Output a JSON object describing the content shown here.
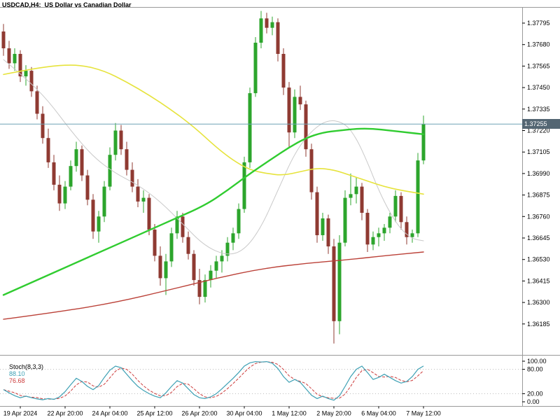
{
  "header": {
    "symbol_label": "USDCAD,H4:  US Dollar vs Canadian Dollar"
  },
  "price_scale": {
    "current_price": "1.37255"
  },
  "indicator_panel": {
    "name": "Stoch(8,3,3)",
    "main_value": "88.10",
    "signal_value": "76.68",
    "level_labels": [
      "100.00",
      "80.00",
      "20.00",
      "0.00"
    ]
  },
  "colors": {
    "background": "#ffffff",
    "bull_candle": "#2ca52c",
    "bear_candle": "#8f3a32",
    "frame": "#9a9a9a",
    "axis_text": "#000000",
    "price_line": "#6fa3b5",
    "price_tag_bg": "#546673",
    "price_tag_text": "#ffffff",
    "level_dotted": "#bbbbbb"
  },
  "chart_data": {
    "type": "candlestick",
    "symbol": "USDCAD",
    "timeframe": "H4",
    "title": "US Dollar vs Canadian Dollar",
    "current_price": 1.37255,
    "y_axis": {
      "tick_step": 0.00115,
      "labels": [
        "1.37795",
        "1.37680",
        "1.37565",
        "1.37450",
        "1.37335",
        "1.37220",
        "1.37105",
        "1.36990",
        "1.36875",
        "1.36760",
        "1.36645",
        "1.36530",
        "1.36415",
        "1.36300",
        "1.36185"
      ],
      "ylim": [
        1.3608,
        1.3788
      ]
    },
    "x_axis": {
      "labels": [
        "19 Apr 2024",
        "22 Apr 20:00",
        "24 Apr 04:00",
        "25 Apr 12:00",
        "26 Apr 20:00",
        "30 Apr 04:00",
        "1 May 12:00",
        "2 May 20:00",
        "6 May 04:00",
        "7 May 12:00"
      ],
      "label_start_index": 3,
      "label_step": 8
    },
    "values_format": "[open,high,low,close]",
    "candles": [
      [
        1.3775,
        1.3779,
        1.3762,
        1.3766
      ],
      [
        1.3766,
        1.377,
        1.3755,
        1.3758
      ],
      [
        1.3758,
        1.3766,
        1.3754,
        1.3763
      ],
      [
        1.3763,
        1.3765,
        1.3748,
        1.3751
      ],
      [
        1.3751,
        1.3757,
        1.3746,
        1.3754
      ],
      [
        1.3754,
        1.3756,
        1.374,
        1.3743
      ],
      [
        1.3743,
        1.3746,
        1.3728,
        1.3731
      ],
      [
        1.3731,
        1.3735,
        1.3715,
        1.3718
      ],
      [
        1.3718,
        1.3723,
        1.3702,
        1.3705
      ],
      [
        1.3705,
        1.3709,
        1.369,
        1.3693
      ],
      [
        1.3693,
        1.3698,
        1.3679,
        1.3683
      ],
      [
        1.3683,
        1.3695,
        1.368,
        1.3692
      ],
      [
        1.3692,
        1.3706,
        1.369,
        1.3703
      ],
      [
        1.3703,
        1.3716,
        1.37,
        1.3712
      ],
      [
        1.3712,
        1.3714,
        1.3695,
        1.3698
      ],
      [
        1.3698,
        1.3701,
        1.3682,
        1.3685
      ],
      [
        1.3685,
        1.3688,
        1.3664,
        1.3668
      ],
      [
        1.3668,
        1.3679,
        1.3662,
        1.3676
      ],
      [
        1.3676,
        1.3695,
        1.3673,
        1.3692
      ],
      [
        1.3692,
        1.3713,
        1.369,
        1.3709
      ],
      [
        1.3709,
        1.3726,
        1.3706,
        1.3722
      ],
      [
        1.3722,
        1.3725,
        1.3709,
        1.3712
      ],
      [
        1.3712,
        1.3716,
        1.3698,
        1.3701
      ],
      [
        1.3701,
        1.3705,
        1.3689,
        1.3692
      ],
      [
        1.3692,
        1.3696,
        1.3681,
        1.3684
      ],
      [
        1.3684,
        1.369,
        1.3678,
        1.3686
      ],
      [
        1.3686,
        1.3688,
        1.3666,
        1.3669
      ],
      [
        1.3669,
        1.3672,
        1.3652,
        1.3655
      ],
      [
        1.3655,
        1.366,
        1.3639,
        1.3643
      ],
      [
        1.3643,
        1.3656,
        1.3634,
        1.3652
      ],
      [
        1.3652,
        1.367,
        1.3649,
        1.3667
      ],
      [
        1.3667,
        1.3679,
        1.3664,
        1.3676
      ],
      [
        1.3676,
        1.3678,
        1.3662,
        1.3665
      ],
      [
        1.3665,
        1.3668,
        1.3653,
        1.3656
      ],
      [
        1.3656,
        1.3658,
        1.3639,
        1.3642
      ],
      [
        1.3642,
        1.3648,
        1.3629,
        1.3633
      ],
      [
        1.3633,
        1.3645,
        1.363,
        1.3642
      ],
      [
        1.3642,
        1.365,
        1.3638,
        1.3647
      ],
      [
        1.3647,
        1.3655,
        1.3643,
        1.3652
      ],
      [
        1.3652,
        1.3658,
        1.3646,
        1.3655
      ],
      [
        1.3655,
        1.3665,
        1.3652,
        1.3662
      ],
      [
        1.3662,
        1.367,
        1.3658,
        1.3667
      ],
      [
        1.3667,
        1.3683,
        1.3664,
        1.368
      ],
      [
        1.368,
        1.3708,
        1.3678,
        1.3705
      ],
      [
        1.3705,
        1.3745,
        1.3702,
        1.3742
      ],
      [
        1.3742,
        1.3772,
        1.374,
        1.3769
      ],
      [
        1.3769,
        1.3786,
        1.3766,
        1.3782
      ],
      [
        1.3782,
        1.3785,
        1.3774,
        1.3777
      ],
      [
        1.3777,
        1.3783,
        1.3773,
        1.378
      ],
      [
        1.378,
        1.3782,
        1.3759,
        1.3763
      ],
      [
        1.3763,
        1.3766,
        1.3741,
        1.3745
      ],
      [
        1.3745,
        1.3748,
        1.3713,
        1.3721
      ],
      [
        1.3721,
        1.3744,
        1.3718,
        1.374
      ],
      [
        1.374,
        1.3746,
        1.3733,
        1.3736
      ],
      [
        1.3736,
        1.3738,
        1.3708,
        1.3712
      ],
      [
        1.3712,
        1.3715,
        1.3685,
        1.3689
      ],
      [
        1.3689,
        1.3692,
        1.3662,
        1.3666
      ],
      [
        1.3666,
        1.3678,
        1.3663,
        1.3675
      ],
      [
        1.3675,
        1.3677,
        1.3656,
        1.366
      ],
      [
        1.366,
        1.3664,
        1.3608,
        1.362
      ],
      [
        1.362,
        1.3666,
        1.3613,
        1.3662
      ],
      [
        1.3662,
        1.369,
        1.366,
        1.3686
      ],
      [
        1.3686,
        1.3699,
        1.3682,
        1.3688
      ],
      [
        1.3688,
        1.3697,
        1.3683,
        1.3692
      ],
      [
        1.3692,
        1.3694,
        1.3674,
        1.3678
      ],
      [
        1.3678,
        1.368,
        1.3657,
        1.3661
      ],
      [
        1.3661,
        1.3668,
        1.3658,
        1.3665
      ],
      [
        1.3665,
        1.367,
        1.366,
        1.3667
      ],
      [
        1.3667,
        1.3672,
        1.3663,
        1.367
      ],
      [
        1.367,
        1.3678,
        1.3667,
        1.3676
      ],
      [
        1.3676,
        1.369,
        1.3673,
        1.3687
      ],
      [
        1.3687,
        1.3689,
        1.3669,
        1.3673
      ],
      [
        1.3673,
        1.3676,
        1.3661,
        1.3665
      ],
      [
        1.3665,
        1.3669,
        1.3662,
        1.3667
      ],
      [
        1.3667,
        1.371,
        1.3665,
        1.3706
      ],
      [
        1.3706,
        1.373,
        1.3704,
        1.37255
      ]
    ],
    "overlays": [
      {
        "name": "ma-gray-line",
        "color": "#c9c9c9",
        "width": 1,
        "points": [
          [
            0,
            1.376
          ],
          [
            4,
            1.375
          ],
          [
            8,
            1.3738
          ],
          [
            12,
            1.3722
          ],
          [
            16,
            1.3708
          ],
          [
            20,
            1.3699
          ],
          [
            24,
            1.3693
          ],
          [
            28,
            1.3684
          ],
          [
            32,
            1.3672
          ],
          [
            36,
            1.366
          ],
          [
            40,
            1.3655
          ],
          [
            43,
            1.3658
          ],
          [
            46,
            1.367
          ],
          [
            49,
            1.369
          ],
          [
            52,
            1.371
          ],
          [
            55,
            1.3722
          ],
          [
            58,
            1.3728
          ],
          [
            61,
            1.3726
          ],
          [
            63,
            1.3718
          ],
          [
            65,
            1.3705
          ],
          [
            67,
            1.369
          ],
          [
            69,
            1.3678
          ],
          [
            71,
            1.3669
          ],
          [
            73,
            1.3664
          ],
          [
            75,
            1.3663
          ]
        ]
      },
      {
        "name": "ma-red-line",
        "color": "#bb4138",
        "width": 1.4,
        "points": [
          [
            0,
            1.3621
          ],
          [
            10,
            1.3625
          ],
          [
            20,
            1.363
          ],
          [
            30,
            1.3637
          ],
          [
            38,
            1.3643
          ],
          [
            46,
            1.3648
          ],
          [
            54,
            1.3651
          ],
          [
            62,
            1.3653
          ],
          [
            68,
            1.3655
          ],
          [
            75,
            1.3657
          ]
        ]
      },
      {
        "name": "ma-yellow-line",
        "color": "#e6e33c",
        "width": 1.6,
        "points": [
          [
            0,
            1.3752
          ],
          [
            5,
            1.3755
          ],
          [
            10,
            1.3757
          ],
          [
            14,
            1.3757
          ],
          [
            18,
            1.3754
          ],
          [
            22,
            1.3748
          ],
          [
            26,
            1.3741
          ],
          [
            30,
            1.3733
          ],
          [
            34,
            1.3724
          ],
          [
            38,
            1.3713
          ],
          [
            41,
            1.3706
          ],
          [
            44,
            1.3701
          ],
          [
            47,
            1.3699
          ],
          [
            50,
            1.3698
          ],
          [
            53,
            1.37
          ],
          [
            56,
            1.3702
          ],
          [
            59,
            1.3701
          ],
          [
            62,
            1.3698
          ],
          [
            65,
            1.3695
          ],
          [
            68,
            1.3692
          ],
          [
            71,
            1.369
          ],
          [
            75,
            1.3688
          ]
        ]
      },
      {
        "name": "ma-green-line",
        "color": "#30cc30",
        "width": 2.4,
        "points": [
          [
            0,
            1.3634
          ],
          [
            6,
            1.3642
          ],
          [
            12,
            1.365
          ],
          [
            18,
            1.3658
          ],
          [
            24,
            1.3666
          ],
          [
            30,
            1.3674
          ],
          [
            36,
            1.3682
          ],
          [
            40,
            1.369
          ],
          [
            44,
            1.3699
          ],
          [
            48,
            1.3707
          ],
          [
            51,
            1.3713
          ],
          [
            54,
            1.3718
          ],
          [
            57,
            1.3721
          ],
          [
            60,
            1.3722
          ],
          [
            63,
            1.3723
          ],
          [
            66,
            1.3723
          ],
          [
            69,
            1.3722
          ],
          [
            72,
            1.3721
          ],
          [
            75,
            1.372
          ]
        ]
      }
    ],
    "stochastic": {
      "name": "Stoch(8,3,3)",
      "main_color": "#3da0b4",
      "signal_color": "#cc3b3b",
      "final_main": 88.1,
      "final_signal": 76.68,
      "levels": [
        {
          "value": 100,
          "label": "100.00",
          "dotted": false
        },
        {
          "value": 80,
          "label": "80.00",
          "dotted": true
        },
        {
          "value": 20,
          "label": "20.00",
          "dotted": true
        },
        {
          "value": 0,
          "label": "0.00",
          "dotted": false
        }
      ],
      "main": [
        30,
        22,
        15,
        10,
        14,
        10,
        7,
        5,
        8,
        6,
        12,
        25,
        42,
        58,
        50,
        38,
        30,
        40,
        60,
        78,
        88,
        84,
        68,
        52,
        38,
        28,
        20,
        14,
        10,
        22,
        38,
        52,
        46,
        32,
        18,
        10,
        8,
        12,
        20,
        32,
        45,
        58,
        72,
        88,
        96,
        99,
        98,
        99,
        95,
        82,
        62,
        48,
        55,
        48,
        32,
        16,
        8,
        14,
        8,
        4,
        15,
        38,
        62,
        80,
        88,
        72,
        55,
        60,
        68,
        60,
        52,
        46,
        50,
        62,
        80,
        88.1
      ]
    }
  }
}
